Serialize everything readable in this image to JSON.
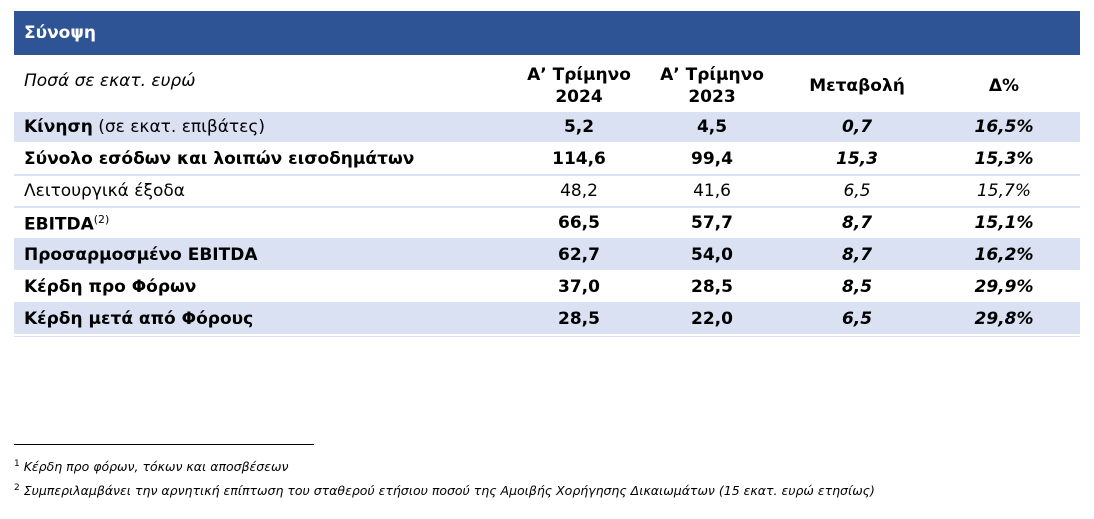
{
  "title": "Σύνοψη",
  "header": {
    "unit_note": "Ποσά σε εκατ. ευρώ",
    "col1_line1": "Α’ Τρίμηνο",
    "col1_line2": "2024",
    "col2_line1": "Α’ Τρίμηνο",
    "col2_line2": "2023",
    "col3": "Μεταβολή",
    "col4": "Δ%"
  },
  "rows": [
    {
      "label_bold": "Κίνηση",
      "label_rest": " (σε εκατ. επιβάτες)",
      "sup": "",
      "v2024": "5,2",
      "v2023": "4,5",
      "change": "0,7",
      "pct": "16,5%"
    },
    {
      "label_bold": "Σύνολο εσόδων και λοιπών εισοδημάτων",
      "label_rest": "",
      "sup": "",
      "v2024": "114,6",
      "v2023": "99,4",
      "change": "15,3",
      "pct": "15,3%"
    },
    {
      "label_bold": "",
      "label_rest": "Λειτουργικά έξοδα",
      "sup": "",
      "v2024": "48,2",
      "v2023": "41,6",
      "change": "6,5",
      "pct": "15,7%"
    },
    {
      "label_bold": "EBITDA",
      "label_rest": "",
      "sup": "(2)",
      "v2024": "66,5",
      "v2023": "57,7",
      "change": "8,7",
      "pct": "15,1%"
    },
    {
      "label_bold": "Προσαρμοσμένο EBITDA",
      "label_rest": "",
      "sup": "",
      "v2024": "62,7",
      "v2023": "54,0",
      "change": "8,7",
      "pct": "16,2%"
    },
    {
      "label_bold": "Κέρδη προ Φόρων",
      "label_rest": "",
      "sup": "",
      "v2024": "37,0",
      "v2023": "28,5",
      "change": "8,5",
      "pct": "29,9%"
    },
    {
      "label_bold": "Κέρδη μετά από Φόρους",
      "label_rest": "",
      "sup": "",
      "v2024": "28,5",
      "v2023": "22,0",
      "change": "6,5",
      "pct": "29,8%"
    }
  ],
  "footnotes": [
    {
      "num": "1",
      "text": "Κέρδη προ φόρων, τόκων και αποσβέσεων"
    },
    {
      "num": "2",
      "text": "Συμπεριλαμβάνει την αρνητική επίπτωση του σταθερού ετήσιου ποσού της Αμοιβής Χορήγησης Δικαιωμάτων (15 εκατ. ευρώ ετησίως)"
    }
  ],
  "colors": {
    "title_bar": "#2f5496",
    "row_shade": "#d9e1f2"
  }
}
